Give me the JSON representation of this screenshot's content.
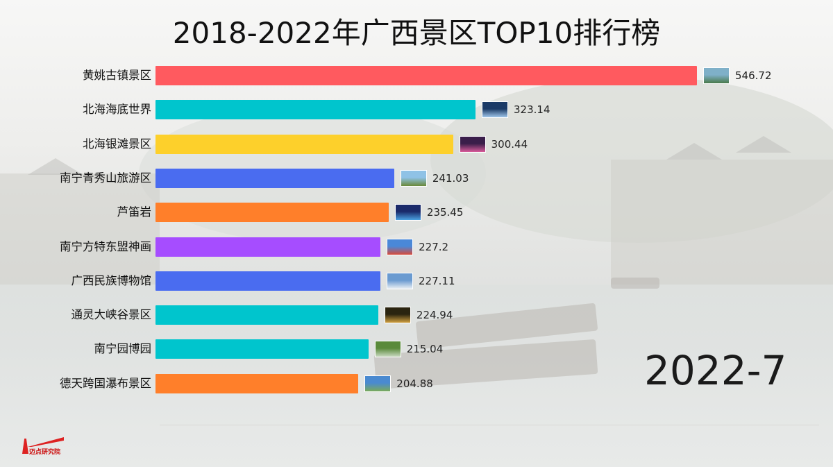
{
  "header": {
    "title": "2018-2022年广西景区TOP10排行榜"
  },
  "period": "2022-7",
  "logo": {
    "text": "迈点研究院"
  },
  "chart_data": {
    "type": "bar",
    "orientation": "horizontal",
    "title": "2018-2022年广西景区TOP10排行榜",
    "categories": [
      "黄姚古镇景区",
      "北海海底世界",
      "北海银滩景区",
      "南宁青秀山旅游区",
      "芦笛岩",
      "南宁方特东盟神画",
      "广西民族博物馆",
      "通灵大峡谷景区",
      "南宁园博园",
      "德天跨国瀑布景区"
    ],
    "values": [
      546.72,
      323.14,
      300.44,
      241.03,
      235.45,
      227.2,
      227.11,
      224.94,
      215.04,
      204.88
    ],
    "value_labels": [
      "546.72",
      "323.14",
      "300.44",
      "241.03",
      "235.45",
      "227.2",
      "227.11",
      "224.94",
      "215.04",
      "204.88"
    ],
    "colors": [
      "#ff5a5f",
      "#00c5cd",
      "#fdd02b",
      "#4a6cf0",
      "#ff7f2a",
      "#a64dff",
      "#4a6cf0",
      "#00c5cd",
      "#00c5cd",
      "#ff7f2a"
    ],
    "thumb_colors": [
      [
        "#7fb0c8",
        "#4a7a4a"
      ],
      [
        "#1b3a66",
        "#9fc6ea"
      ],
      [
        "#3a1e4a",
        "#d85a9a"
      ],
      [
        "#8fc2e6",
        "#6a8a3a"
      ],
      [
        "#1a2a6a",
        "#4aa0e0"
      ],
      [
        "#4a88d8",
        "#d84a3a"
      ],
      [
        "#6a9ad0",
        "#e8eef4"
      ],
      [
        "#2a2410",
        "#d0a040"
      ],
      [
        "#5a8a3a",
        "#c8d8c0"
      ],
      [
        "#4a8ad0",
        "#7aaa5a"
      ]
    ],
    "xlim": [
      0,
      546.72
    ],
    "grid": false,
    "legend": "none"
  }
}
